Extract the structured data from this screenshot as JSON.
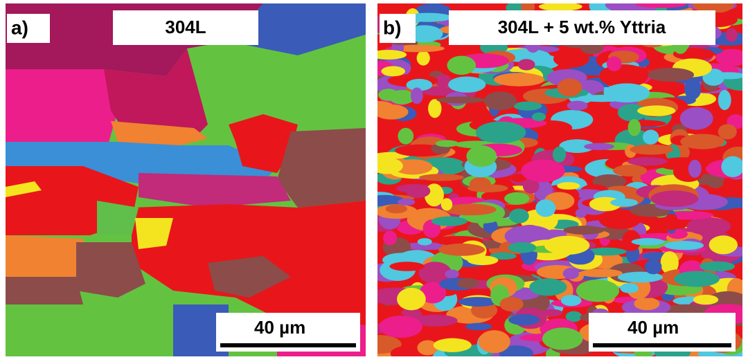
{
  "panels": [
    {
      "label": "a)",
      "title": "304L",
      "scale_bar": "40 µm"
    },
    {
      "label": "b)",
      "title": "304L + 5 wt.% Yttria",
      "scale_bar": "40 µm"
    }
  ]
}
